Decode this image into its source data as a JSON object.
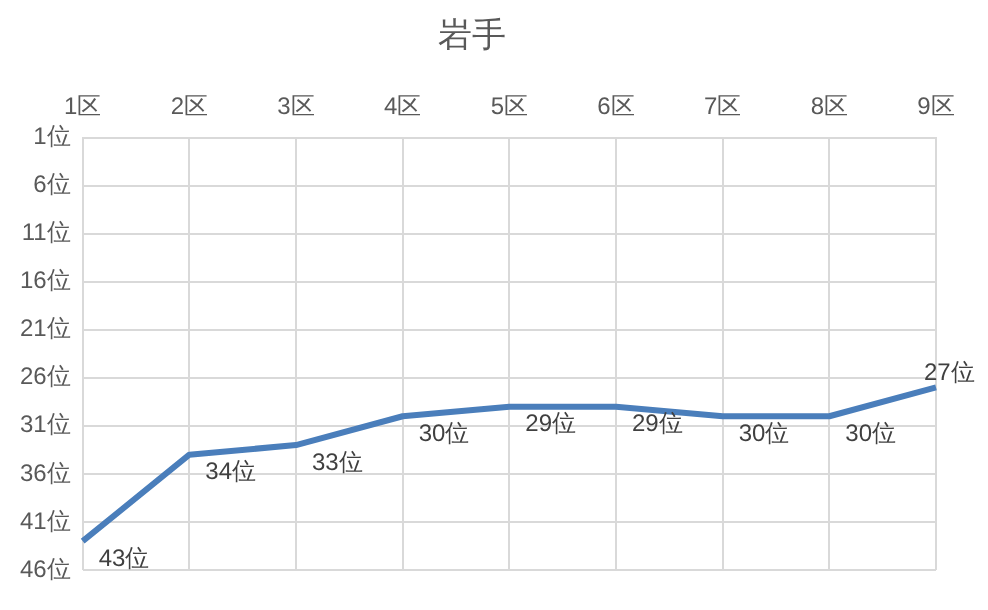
{
  "chart_data": {
    "type": "line",
    "title": "岩手",
    "categories": [
      "1区",
      "2区",
      "3区",
      "4区",
      "5区",
      "6区",
      "7区",
      "8区",
      "9区"
    ],
    "series": [
      {
        "color": "#4a7ebb",
        "values": [
          43,
          34,
          33,
          30,
          29,
          29,
          30,
          30,
          27
        ],
        "value_labels": [
          "43位",
          "34位",
          "33位",
          "30位",
          "29位",
          "29位",
          "30位",
          "30位",
          "27位"
        ]
      }
    ],
    "ylim": [
      46,
      1
    ],
    "yticks": [
      {
        "value": 1,
        "label": "1位"
      },
      {
        "value": 6,
        "label": "6位"
      },
      {
        "value": 11,
        "label": "11位"
      },
      {
        "value": 16,
        "label": "16位"
      },
      {
        "value": 21,
        "label": "21位"
      },
      {
        "value": 26,
        "label": "26位"
      },
      {
        "value": 31,
        "label": "31位"
      },
      {
        "value": 36,
        "label": "36位"
      },
      {
        "value": 41,
        "label": "41位"
      },
      {
        "value": 46,
        "label": "46位"
      }
    ],
    "grid": true,
    "legend": false,
    "marker": "none",
    "line_style": "solid"
  }
}
